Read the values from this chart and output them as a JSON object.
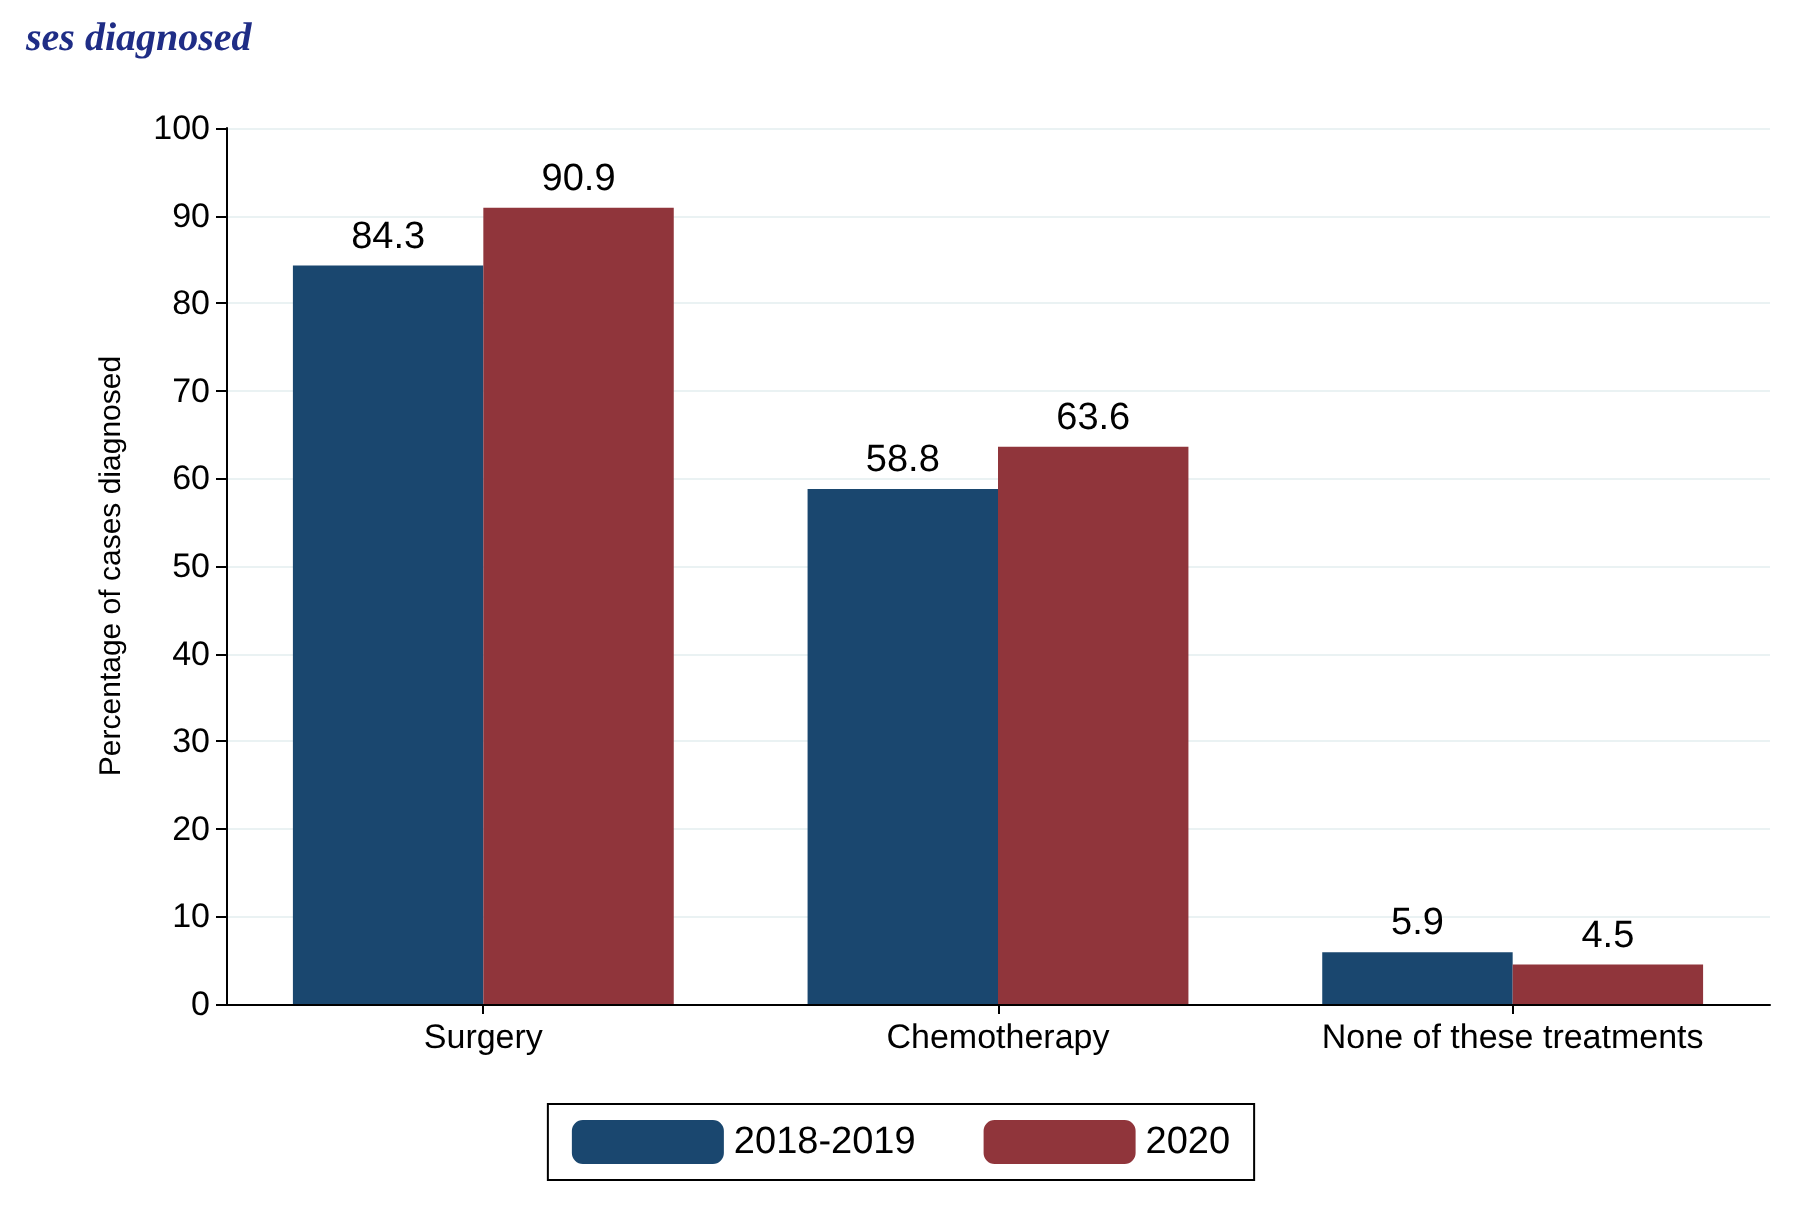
{
  "chart_data": {
    "type": "bar",
    "title": "ses diagnosed",
    "ylabel": "Percentage of cases diagnosed",
    "categories": [
      "Surgery",
      "Chemotherapy",
      "None of these treatments"
    ],
    "series": [
      {
        "name": "2018-2019",
        "color": "#1a476f",
        "values": [
          84.3,
          58.8,
          5.9
        ]
      },
      {
        "name": "2020",
        "color": "#90353b",
        "values": [
          90.9,
          63.6,
          4.5
        ]
      }
    ],
    "ylim": [
      0,
      100
    ],
    "yticks": [
      0,
      10,
      20,
      30,
      40,
      50,
      60,
      70,
      80,
      90,
      100
    ],
    "grid": "y",
    "legend": "bottom",
    "data_labels": true
  }
}
